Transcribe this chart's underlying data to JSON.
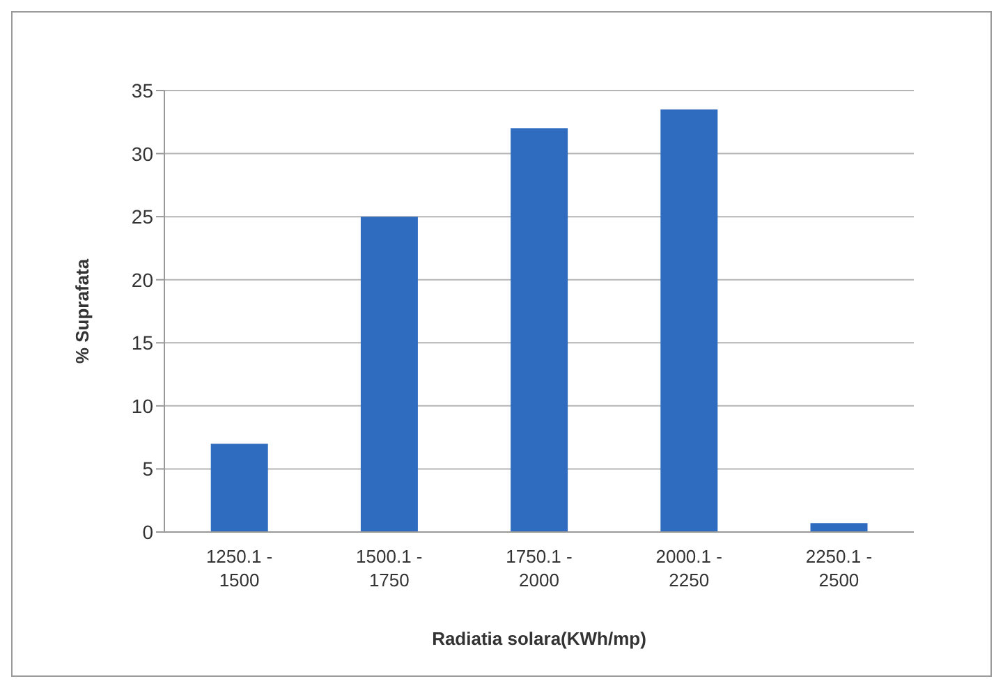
{
  "chart_data": {
    "type": "bar",
    "xlabel": "Radiatia solara(KWh/mp)",
    "ylabel": "% Suprafata",
    "categories": [
      "1250.1 - 1500",
      "1500.1 - 1750",
      "1750.1 - 2000",
      "2000.1 - 2250",
      "2250.1 - 2500"
    ],
    "values": [
      7,
      25,
      32,
      33.5,
      0.7
    ],
    "color": "#2f6cc0",
    "ylim": [
      0,
      35
    ],
    "yticks": [
      0,
      5,
      10,
      15,
      20,
      25,
      30,
      35
    ],
    "grid": "y"
  }
}
